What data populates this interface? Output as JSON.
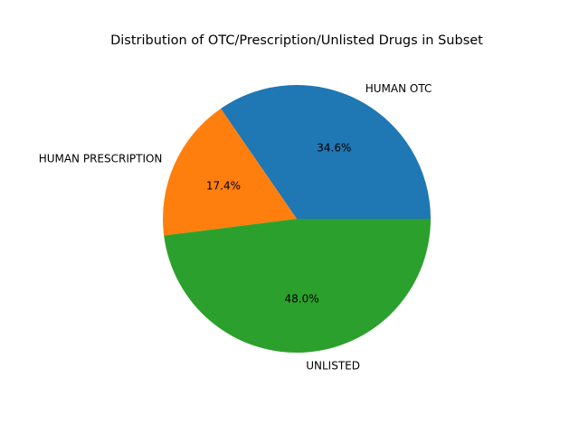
{
  "chart_data": {
    "type": "pie",
    "title": "Distribution of OTC/Prescription/Unlisted Drugs in Subset",
    "start_angle_deg": 0,
    "direction": "counterclockwise",
    "slices": [
      {
        "label": "HUMAN OTC",
        "percent_label": "34.6%",
        "value": 34.6,
        "color": "#1f77b4"
      },
      {
        "label": "HUMAN PRESCRIPTION",
        "percent_label": "17.4%",
        "value": 17.4,
        "color": "#ff7f0e"
      },
      {
        "label": "UNLISTED",
        "percent_label": "48.0%",
        "value": 48.0,
        "color": "#2ca02c"
      }
    ]
  }
}
